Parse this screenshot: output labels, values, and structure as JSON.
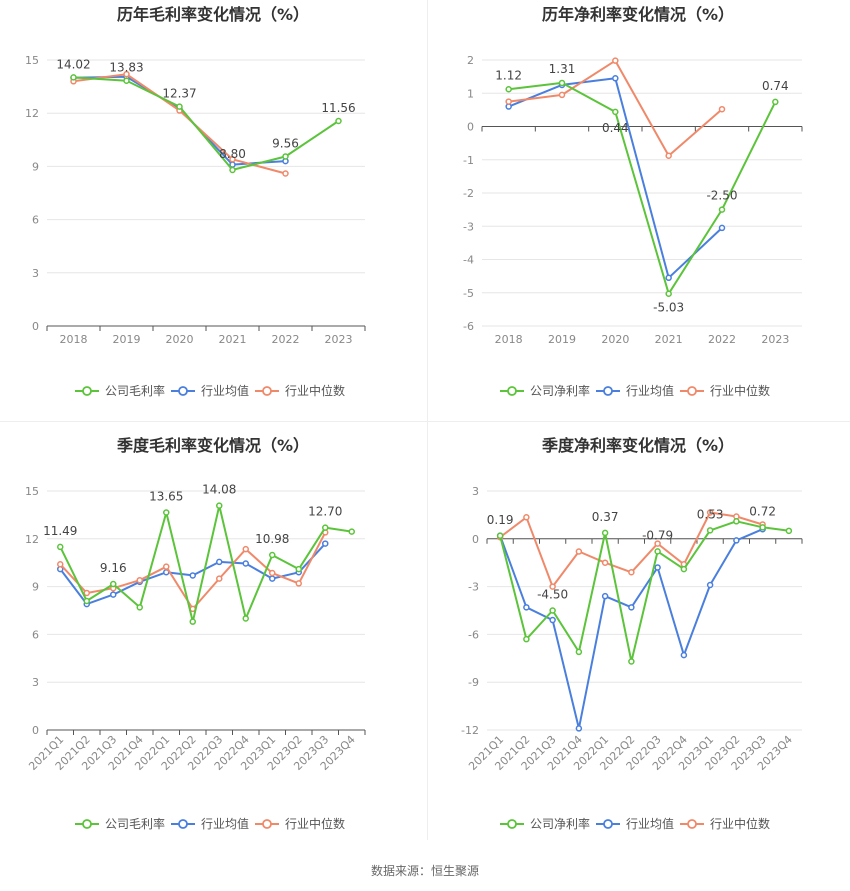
{
  "colors": {
    "company": "#5bc43a",
    "industry_avg": "#4a7fde",
    "industry_median": "#f0896a",
    "grid": "#e6e6e6",
    "axis_text": "#888888",
    "label_text": "#444444",
    "title_text": "#333333"
  },
  "source": "数据来源：恒生聚源",
  "chart_data": [
    {
      "type": "line",
      "title": "历年毛利率变化情况（%）",
      "categories": [
        "2018",
        "2019",
        "2020",
        "2021",
        "2022",
        "2023"
      ],
      "ylim": [
        0,
        15
      ],
      "yticks": [
        0,
        3,
        6,
        9,
        12,
        15
      ],
      "series": [
        {
          "name": "公司毛利率",
          "color_key": "company",
          "values": [
            14.02,
            13.83,
            12.37,
            8.8,
            9.56,
            11.56
          ]
        },
        {
          "name": "行业均值",
          "color_key": "industry_avg",
          "values": [
            14.0,
            14.05,
            12.25,
            9.1,
            9.3,
            null
          ]
        },
        {
          "name": "行业中位数",
          "color_key": "industry_median",
          "values": [
            13.8,
            14.2,
            12.15,
            9.4,
            8.6,
            null
          ]
        }
      ],
      "data_labels": [
        {
          "index": 0,
          "text": "14.02"
        },
        {
          "index": 1,
          "text": "13.83"
        },
        {
          "index": 2,
          "text": "12.37"
        },
        {
          "index": 3,
          "text": "8.80"
        },
        {
          "index": 4,
          "text": "9.56"
        },
        {
          "index": 5,
          "text": "11.56"
        }
      ]
    },
    {
      "type": "line",
      "title": "历年净利率变化情况（%）",
      "categories": [
        "2018",
        "2019",
        "2020",
        "2021",
        "2022",
        "2023"
      ],
      "ylim": [
        -6,
        2
      ],
      "yticks": [
        -6,
        -5,
        -4,
        -3,
        -2,
        -1,
        0,
        1,
        2
      ],
      "zero_line": true,
      "series": [
        {
          "name": "公司净利率",
          "color_key": "company",
          "values": [
            1.12,
            1.31,
            0.44,
            -5.03,
            -2.5,
            0.74
          ]
        },
        {
          "name": "行业均值",
          "color_key": "industry_avg",
          "values": [
            0.6,
            1.25,
            1.45,
            -4.55,
            -3.05,
            null
          ]
        },
        {
          "name": "行业中位数",
          "color_key": "industry_median",
          "values": [
            0.75,
            0.95,
            1.98,
            -0.88,
            0.52,
            null
          ]
        }
      ],
      "data_labels": [
        {
          "index": 0,
          "text": "1.12"
        },
        {
          "index": 1,
          "text": "1.31"
        },
        {
          "index": 2,
          "text": "0.44"
        },
        {
          "index": 3,
          "text": "-5.03"
        },
        {
          "index": 4,
          "text": "-2.50"
        },
        {
          "index": 5,
          "text": "0.74"
        }
      ]
    },
    {
      "type": "line",
      "title": "季度毛利率变化情况（%）",
      "categories": [
        "2021Q1",
        "2021Q2",
        "2021Q3",
        "2021Q4",
        "2022Q1",
        "2022Q2",
        "2022Q3",
        "2022Q4",
        "2023Q1",
        "2023Q2",
        "2023Q3",
        "2023Q4"
      ],
      "ylim": [
        0,
        15
      ],
      "yticks": [
        0,
        3,
        6,
        9,
        12,
        15
      ],
      "rotate_x_labels": true,
      "series": [
        {
          "name": "公司毛利率",
          "color_key": "company",
          "values": [
            11.49,
            8.1,
            9.16,
            7.7,
            13.65,
            6.8,
            14.08,
            7.0,
            10.98,
            10.1,
            12.7,
            12.45
          ]
        },
        {
          "name": "行业均值",
          "color_key": "industry_avg",
          "values": [
            10.1,
            7.9,
            8.5,
            9.3,
            9.9,
            9.7,
            10.55,
            10.45,
            9.5,
            9.9,
            11.7,
            null
          ]
        },
        {
          "name": "行业中位数",
          "color_key": "industry_median",
          "values": [
            10.4,
            8.6,
            8.9,
            9.4,
            10.25,
            7.6,
            9.5,
            11.35,
            9.85,
            9.2,
            12.4,
            null
          ]
        }
      ],
      "data_labels": [
        {
          "index": 0,
          "text": "11.49"
        },
        {
          "index": 2,
          "text": "9.16"
        },
        {
          "index": 4,
          "text": "13.65"
        },
        {
          "index": 6,
          "text": "14.08"
        },
        {
          "index": 8,
          "text": "10.98"
        },
        {
          "index": 10,
          "text": "12.70"
        }
      ]
    },
    {
      "type": "line",
      "title": "季度净利率变化情况（%）",
      "categories": [
        "2021Q1",
        "2021Q2",
        "2021Q3",
        "2021Q4",
        "2022Q1",
        "2022Q2",
        "2022Q3",
        "2022Q4",
        "2023Q1",
        "2023Q2",
        "2023Q3",
        "2023Q4"
      ],
      "ylim": [
        -12,
        3
      ],
      "yticks": [
        -12,
        -9,
        -6,
        -3,
        0,
        3
      ],
      "zero_line": true,
      "rotate_x_labels": true,
      "series": [
        {
          "name": "公司净利率",
          "color_key": "company",
          "values": [
            0.19,
            -6.3,
            -4.5,
            -7.1,
            0.37,
            -7.7,
            -0.79,
            -1.9,
            0.53,
            1.1,
            0.72,
            0.5
          ]
        },
        {
          "name": "行业均值",
          "color_key": "industry_avg",
          "values": [
            0.2,
            -4.3,
            -5.1,
            -11.9,
            -3.6,
            -4.3,
            -1.8,
            -7.3,
            -2.9,
            -0.1,
            0.6,
            null
          ]
        },
        {
          "name": "行业中位数",
          "color_key": "industry_median",
          "values": [
            0.1,
            1.35,
            -3.0,
            -0.8,
            -1.5,
            -2.1,
            -0.3,
            -1.6,
            1.65,
            1.4,
            0.9,
            null
          ]
        }
      ],
      "data_labels": [
        {
          "index": 0,
          "text": "0.19"
        },
        {
          "index": 2,
          "text": "-4.50"
        },
        {
          "index": 4,
          "text": "0.37"
        },
        {
          "index": 6,
          "text": "-0.79"
        },
        {
          "index": 8,
          "text": "0.53"
        },
        {
          "index": 10,
          "text": "0.72"
        }
      ]
    }
  ]
}
